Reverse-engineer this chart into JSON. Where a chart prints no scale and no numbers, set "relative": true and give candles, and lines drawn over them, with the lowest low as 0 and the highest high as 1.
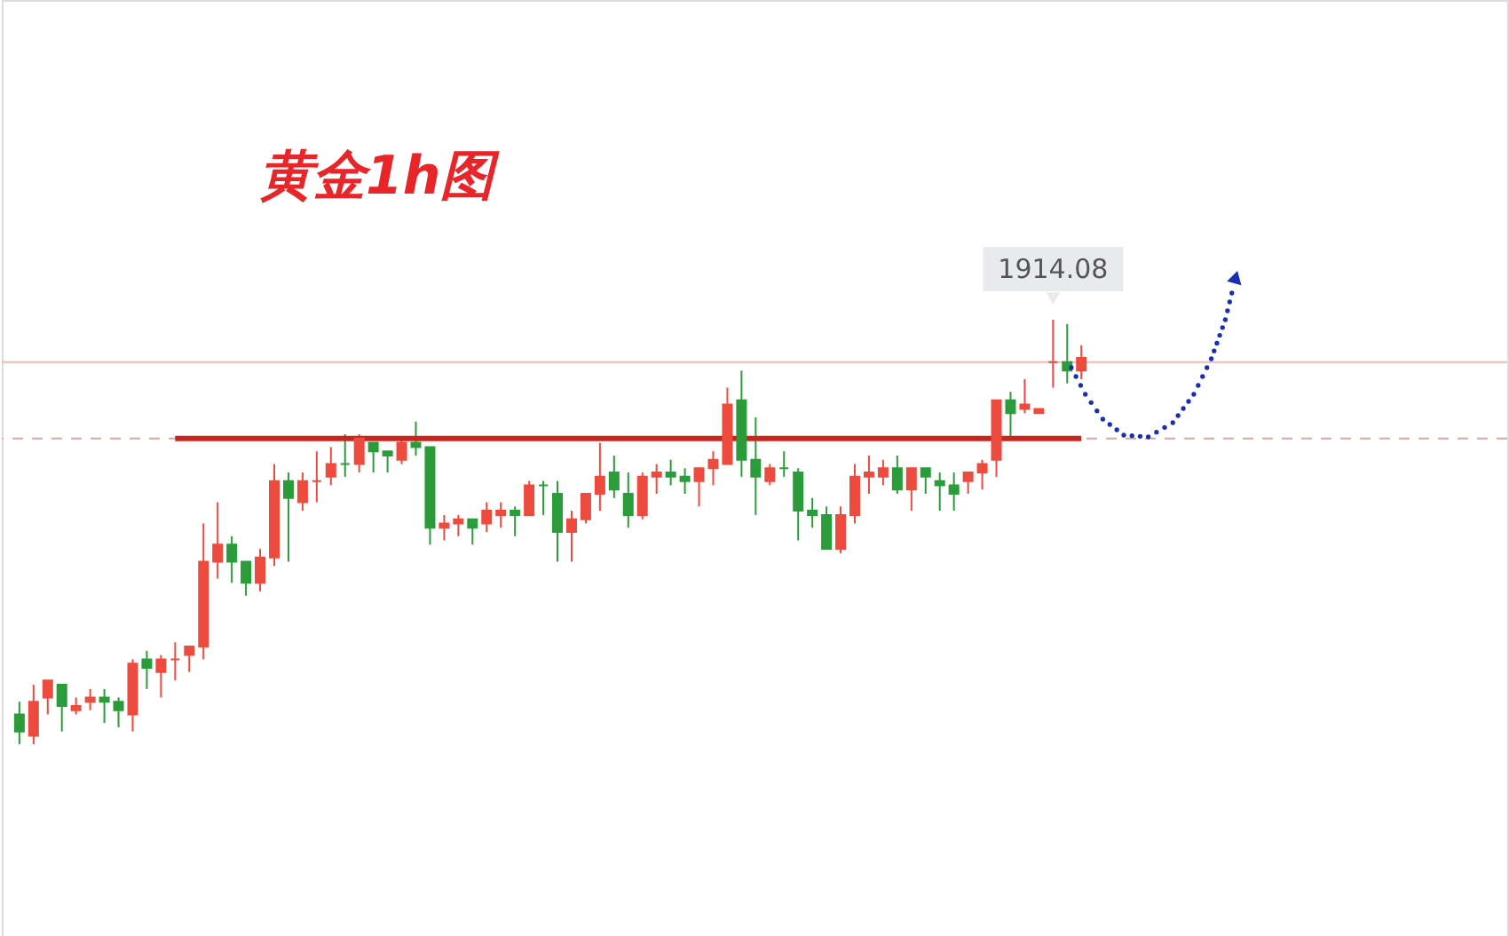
{
  "chart_data": {
    "type": "candlestick",
    "title": "黄金1h图",
    "relative": true,
    "categories": [
      null,
      null,
      null,
      null,
      null,
      null,
      null,
      null,
      null,
      null,
      null,
      null,
      null,
      null,
      null,
      null,
      null,
      null,
      null,
      null,
      null,
      null,
      null,
      null,
      null,
      null,
      null,
      null,
      null,
      null,
      null,
      null,
      null,
      null,
      null,
      null,
      null,
      null,
      null,
      null,
      null,
      null,
      null,
      null,
      null,
      null,
      null,
      null,
      null,
      null,
      null,
      null,
      null,
      null,
      null,
      null,
      null,
      null,
      null,
      null,
      null,
      null,
      null,
      null,
      null,
      null,
      null,
      null,
      null,
      null,
      null,
      null,
      null,
      null,
      null,
      null
    ],
    "ohlc": [
      [
        0.07,
        0.1,
        0.0,
        0.03
      ],
      [
        0.02,
        0.14,
        0,
        0.1
      ],
      [
        0.11,
        0.15,
        0.07,
        0.15
      ],
      [
        0.14,
        0.14,
        0.03,
        0.09
      ],
      [
        0.08,
        0.11,
        0.07,
        0.09
      ],
      [
        0.1,
        0.13,
        0.08,
        0.11
      ],
      [
        0.11,
        0.13,
        0.05,
        0.1
      ],
      [
        0.1,
        0.11,
        0.04,
        0.08
      ],
      [
        0.07,
        0.2,
        0.03,
        0.19
      ],
      [
        0.2,
        0.22,
        0.13,
        0.18
      ],
      [
        0.17,
        0.21,
        0.11,
        0.2
      ],
      [
        0.2,
        0.24,
        0.15,
        0.2
      ],
      [
        0.21,
        0.23,
        0.17,
        0.23
      ],
      [
        0.23,
        0.52,
        0.2,
        0.43
      ],
      [
        0.43,
        0.57,
        0.39,
        0.47
      ],
      [
        0.47,
        0.49,
        0.38,
        0.43
      ],
      [
        0.43,
        0.43,
        0.35,
        0.38
      ],
      [
        0.38,
        0.46,
        0.36,
        0.44
      ],
      [
        0.44,
        0.66,
        0.42,
        0.62
      ],
      [
        0.62,
        0.64,
        0.43,
        0.58
      ],
      [
        0.57,
        0.64,
        0.55,
        0.62
      ],
      [
        0.62,
        0.69,
        0.57,
        0.62
      ],
      [
        0.63,
        0.7,
        0.61,
        0.66
      ],
      [
        0.66,
        0.73,
        0.63,
        0.66
      ],
      [
        0.66,
        0.73,
        0.64,
        0.72
      ],
      [
        0.71,
        0.71,
        0.64,
        0.69
      ],
      [
        0.69,
        0.69,
        0.64,
        0.68
      ],
      [
        0.67,
        0.72,
        0.66,
        0.71
      ],
      [
        0.71,
        0.76,
        0.68,
        0.7
      ],
      [
        0.7,
        0.7,
        0.47,
        0.51
      ],
      [
        0.51,
        0.54,
        0.48,
        0.52
      ],
      [
        0.52,
        0.54,
        0.49,
        0.53
      ],
      [
        0.53,
        0.53,
        0.47,
        0.51
      ],
      [
        0.52,
        0.57,
        0.5,
        0.55
      ],
      [
        0.54,
        0.57,
        0.51,
        0.55
      ],
      [
        0.55,
        0.56,
        0.49,
        0.54
      ],
      [
        0.54,
        0.62,
        0.54,
        0.61
      ],
      [
        0.61,
        0.62,
        0.54,
        0.61
      ],
      [
        0.59,
        0.62,
        0.43,
        0.5
      ],
      [
        0.5,
        0.55,
        0.43,
        0.53
      ],
      [
        0.53,
        0.59,
        0.52,
        0.59
      ],
      [
        0.59,
        0.71,
        0.55,
        0.63
      ],
      [
        0.64,
        0.68,
        0.58,
        0.6
      ],
      [
        0.59,
        0.64,
        0.51,
        0.54
      ],
      [
        0.54,
        0.64,
        0.53,
        0.63
      ],
      [
        0.63,
        0.66,
        0.59,
        0.64
      ],
      [
        0.64,
        0.67,
        0.61,
        0.63
      ],
      [
        0.63,
        0.65,
        0.59,
        0.62
      ],
      [
        0.62,
        0.65,
        0.56,
        0.65
      ],
      [
        0.65,
        0.69,
        0.61,
        0.67
      ],
      [
        0.66,
        0.84,
        0.66,
        0.8
      ],
      [
        0.81,
        0.88,
        0.63,
        0.67
      ],
      [
        0.67,
        0.77,
        0.54,
        0.63
      ],
      [
        0.62,
        0.66,
        0.61,
        0.65
      ],
      [
        0.65,
        0.69,
        0.63,
        0.65
      ],
      [
        0.64,
        0.65,
        0.48,
        0.55
      ],
      [
        0.55,
        0.58,
        0.51,
        0.54
      ],
      [
        0.54,
        0.56,
        0.46,
        0.46
      ],
      [
        0.46,
        0.56,
        0.45,
        0.54
      ],
      [
        0.54,
        0.66,
        0.52,
        0.63
      ],
      [
        0.63,
        0.68,
        0.59,
        0.64
      ],
      [
        0.63,
        0.67,
        0.61,
        0.65
      ],
      [
        0.65,
        0.68,
        0.59,
        0.6
      ],
      [
        0.6,
        0.65,
        0.55,
        0.65
      ],
      [
        0.65,
        0.65,
        0.59,
        0.63
      ],
      [
        0.62,
        0.64,
        0.55,
        0.61
      ],
      [
        0.61,
        0.64,
        0.55,
        0.59
      ],
      [
        0.62,
        0.64,
        0.59,
        0.64
      ],
      [
        0.64,
        0.67,
        0.6,
        0.66
      ],
      [
        0.67,
        0.81,
        0.63,
        0.81
      ],
      [
        0.81,
        0.83,
        0.72,
        0.78
      ],
      [
        0.79,
        0.86,
        0.78,
        0.8
      ],
      [
        0.78,
        0.79,
        0.78,
        0.79
      ],
      [
        0.9,
        1,
        0.84,
        0.9
      ],
      [
        0.9,
        0.99,
        0.85,
        0.88
      ],
      [
        0.88,
        0.94,
        0.86,
        0.91
      ]
    ],
    "colors": [
      "#2a9d3a",
      "#ec4b3e",
      "#ec4b3e",
      "#2a9d3a",
      "#ec4b3e",
      "#ec4b3e",
      "#2a9d3a",
      "#2a9d3a",
      "#ec4b3e",
      "#2a9d3a",
      "#ec4b3e",
      "#ec4b3e",
      "#ec4b3e",
      "#ec4b3e",
      "#ec4b3e",
      "#2a9d3a",
      "#2a9d3a",
      "#ec4b3e",
      "#ec4b3e",
      "#2a9d3a",
      "#ec4b3e",
      "#ec4b3e",
      "#ec4b3e",
      "#2a9d3a",
      "#ec4b3e",
      "#2a9d3a",
      "#2a9d3a",
      "#ec4b3e",
      "#2a9d3a",
      "#2a9d3a",
      "#ec4b3e",
      "#ec4b3e",
      "#2a9d3a",
      "#ec4b3e",
      "#ec4b3e",
      "#2a9d3a",
      "#ec4b3e",
      "#2a9d3a",
      "#2a9d3a",
      "#ec4b3e",
      "#ec4b3e",
      "#ec4b3e",
      "#2a9d3a",
      "#2a9d3a",
      "#ec4b3e",
      "#ec4b3e",
      "#2a9d3a",
      "#2a9d3a",
      "#ec4b3e",
      "#ec4b3e",
      "#ec4b3e",
      "#2a9d3a",
      "#2a9d3a",
      "#ec4b3e",
      "#2a9d3a",
      "#2a9d3a",
      "#2a9d3a",
      "#2a9d3a",
      "#ec4b3e",
      "#ec4b3e",
      "#ec4b3e",
      "#ec4b3e",
      "#2a9d3a",
      "#ec4b3e",
      "#2a9d3a",
      "#2a9d3a",
      "#2a9d3a",
      "#ec4b3e",
      "#ec4b3e",
      "#ec4b3e",
      "#2a9d3a",
      "#ec4b3e",
      "#ec4b3e",
      "#ec4b3e",
      "#2a9d3a",
      "#ec4b3e"
    ],
    "series": [
      {
        "type": "line",
        "color": "#c8261c",
        "values": [
          null,
          null,
          null,
          null,
          null,
          null,
          null,
          null,
          null,
          null,
          null,
          0.72,
          0.72,
          0.72,
          0.72,
          0.72,
          0.72,
          0.72,
          0.72,
          0.72,
          0.72,
          0.72,
          0.72,
          0.72,
          0.72,
          0.72,
          0.72,
          0.72,
          0.72,
          0.72,
          0.72,
          0.72,
          0.72,
          0.72,
          0.72,
          0.72,
          0.72,
          0.72,
          0.72,
          0.72,
          0.72,
          0.72,
          0.72,
          0.72,
          0.72,
          0.72,
          0.72,
          0.72,
          0.72,
          0.72,
          0.72,
          0.72,
          0.72,
          0.72,
          0.72,
          0.72,
          0.72,
          0.72,
          0.72,
          0.72,
          0.72,
          0.72,
          0.72,
          0.72,
          0.72,
          0.72,
          0.72,
          0.72,
          0.72,
          0.72,
          0.72,
          0.72,
          0.72,
          0.72,
          0.72,
          0.72
        ]
      }
    ],
    "ref_lines": [
      {
        "axis": "y",
        "value": 0.9,
        "color": "#f2b8b0"
      },
      {
        "axis": "y",
        "value": 0.72,
        "color": "#e3a49e",
        "line_style": "dashed"
      }
    ],
    "annotations": [
      "1914.08"
    ]
  }
}
